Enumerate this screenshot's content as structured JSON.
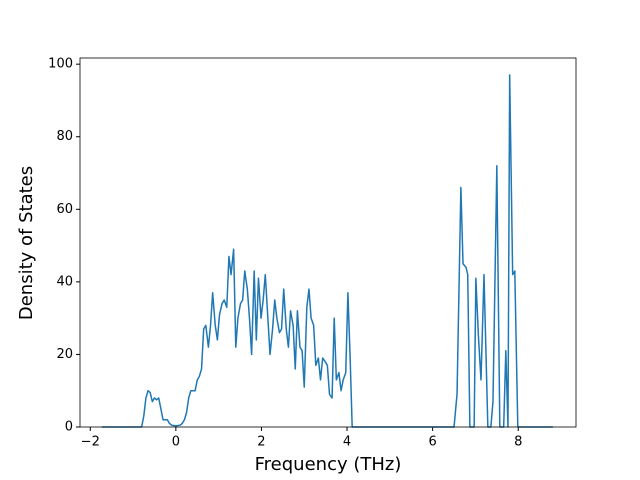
{
  "chart_data": {
    "type": "line",
    "xlabel": "Frequency (THz)",
    "ylabel": "Density of States",
    "x": [
      -1.73,
      -0.8,
      -0.75,
      -0.7,
      -0.65,
      -0.6,
      -0.55,
      -0.5,
      -0.45,
      -0.4,
      -0.35,
      -0.3,
      -0.2,
      -0.15,
      -0.1,
      0.0,
      0.1,
      0.15,
      0.2,
      0.25,
      0.3,
      0.35,
      0.45,
      0.5,
      0.55,
      0.6,
      0.65,
      0.7,
      0.76,
      0.81,
      0.86,
      0.92,
      0.97,
      1.02,
      1.08,
      1.13,
      1.19,
      1.24,
      1.29,
      1.35,
      1.4,
      1.45,
      1.51,
      1.56,
      1.61,
      1.67,
      1.72,
      1.77,
      1.83,
      1.88,
      1.93,
      1.99,
      2.04,
      2.09,
      2.15,
      2.2,
      2.26,
      2.31,
      2.36,
      2.42,
      2.47,
      2.52,
      2.58,
      2.63,
      2.68,
      2.74,
      2.79,
      2.84,
      2.9,
      2.95,
      3.0,
      3.06,
      3.11,
      3.16,
      3.22,
      3.27,
      3.33,
      3.38,
      3.43,
      3.49,
      3.54,
      3.59,
      3.65,
      3.7,
      3.75,
      3.81,
      3.86,
      3.91,
      3.97,
      4.02,
      4.07,
      4.12,
      6.5,
      6.57,
      6.66,
      6.71,
      6.78,
      6.82,
      6.87,
      6.97,
      7.01,
      7.07,
      7.13,
      7.2,
      7.29,
      7.36,
      7.41,
      7.5,
      7.57,
      7.66,
      7.71,
      7.76,
      7.8,
      7.87,
      7.92,
      7.99,
      8.81
    ],
    "series": [
      {
        "color": "#1f77b4",
        "values": [
          0,
          0,
          3,
          8,
          10,
          9.5,
          7,
          8,
          7.5,
          8,
          5,
          2,
          2,
          1,
          0.5,
          0.3,
          0.5,
          1,
          2,
          4,
          8,
          10,
          10,
          13,
          14,
          16,
          27,
          28,
          22,
          28,
          37,
          28,
          24,
          31,
          34,
          35,
          33,
          47,
          42,
          49,
          22,
          30,
          34,
          35,
          43,
          38,
          30,
          20,
          43,
          24,
          41,
          30,
          35,
          42,
          30,
          20,
          27,
          35,
          30,
          26,
          27,
          38,
          27,
          22,
          32,
          28,
          16,
          32,
          22,
          21,
          11,
          33,
          38,
          30,
          28,
          17,
          19,
          13,
          19,
          18,
          17,
          9,
          8,
          30,
          13,
          15,
          10,
          13,
          15,
          37,
          20,
          0,
          0,
          9,
          66,
          45,
          44,
          42,
          0,
          0,
          41,
          25,
          13,
          42,
          0,
          0,
          7,
          72,
          0,
          0,
          21,
          0,
          97,
          42,
          43,
          0,
          0
        ]
      }
    ],
    "xlim": [
      -2.24,
      9.35
    ],
    "ylim": [
      0,
      101.7
    ],
    "xticks": [
      {
        "value": -2,
        "label": "−2"
      },
      0,
      2,
      4,
      6,
      8
    ],
    "yticks": [
      0,
      20,
      40,
      60,
      80,
      100
    ]
  }
}
